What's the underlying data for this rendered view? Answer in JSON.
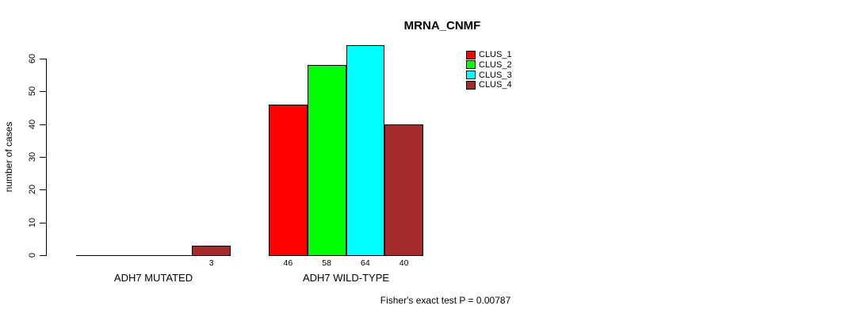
{
  "title": "MRNA_CNMF",
  "footer": "Fisher's exact test P = 0.00787",
  "chart_data": {
    "type": "bar",
    "title": "MRNA_CNMF",
    "xlabel": "",
    "ylabel": "number of cases",
    "categories": [
      "ADH7 MUTATED",
      "ADH7 WILD-TYPE"
    ],
    "series": [
      {
        "name": "CLUS_1",
        "color": "#ff0000",
        "values": [
          0,
          46
        ]
      },
      {
        "name": "CLUS_2",
        "color": "#00ff00",
        "values": [
          0,
          58
        ]
      },
      {
        "name": "CLUS_3",
        "color": "#00ffff",
        "values": [
          3,
          64
        ]
      },
      {
        "name": "CLUS_4",
        "color": "#a52a2a",
        "values": [
          3,
          40
        ]
      }
    ],
    "bar_value_labels": {
      "ADH7 MUTATED": [
        null,
        null,
        null,
        3
      ],
      "ADH7 WILD-TYPE": [
        46,
        58,
        64,
        40
      ]
    },
    "yticks": [
      0,
      10,
      20,
      30,
      40,
      50,
      60
    ],
    "ylim": [
      0,
      64
    ],
    "grid": false,
    "legend_position": "top-right",
    "legend_labels": [
      "CLUS_1",
      "CLUS_2",
      "CLUS_3",
      "CLUS_4"
    ],
    "annotation": "Fisher's exact test P = 0.00787"
  }
}
